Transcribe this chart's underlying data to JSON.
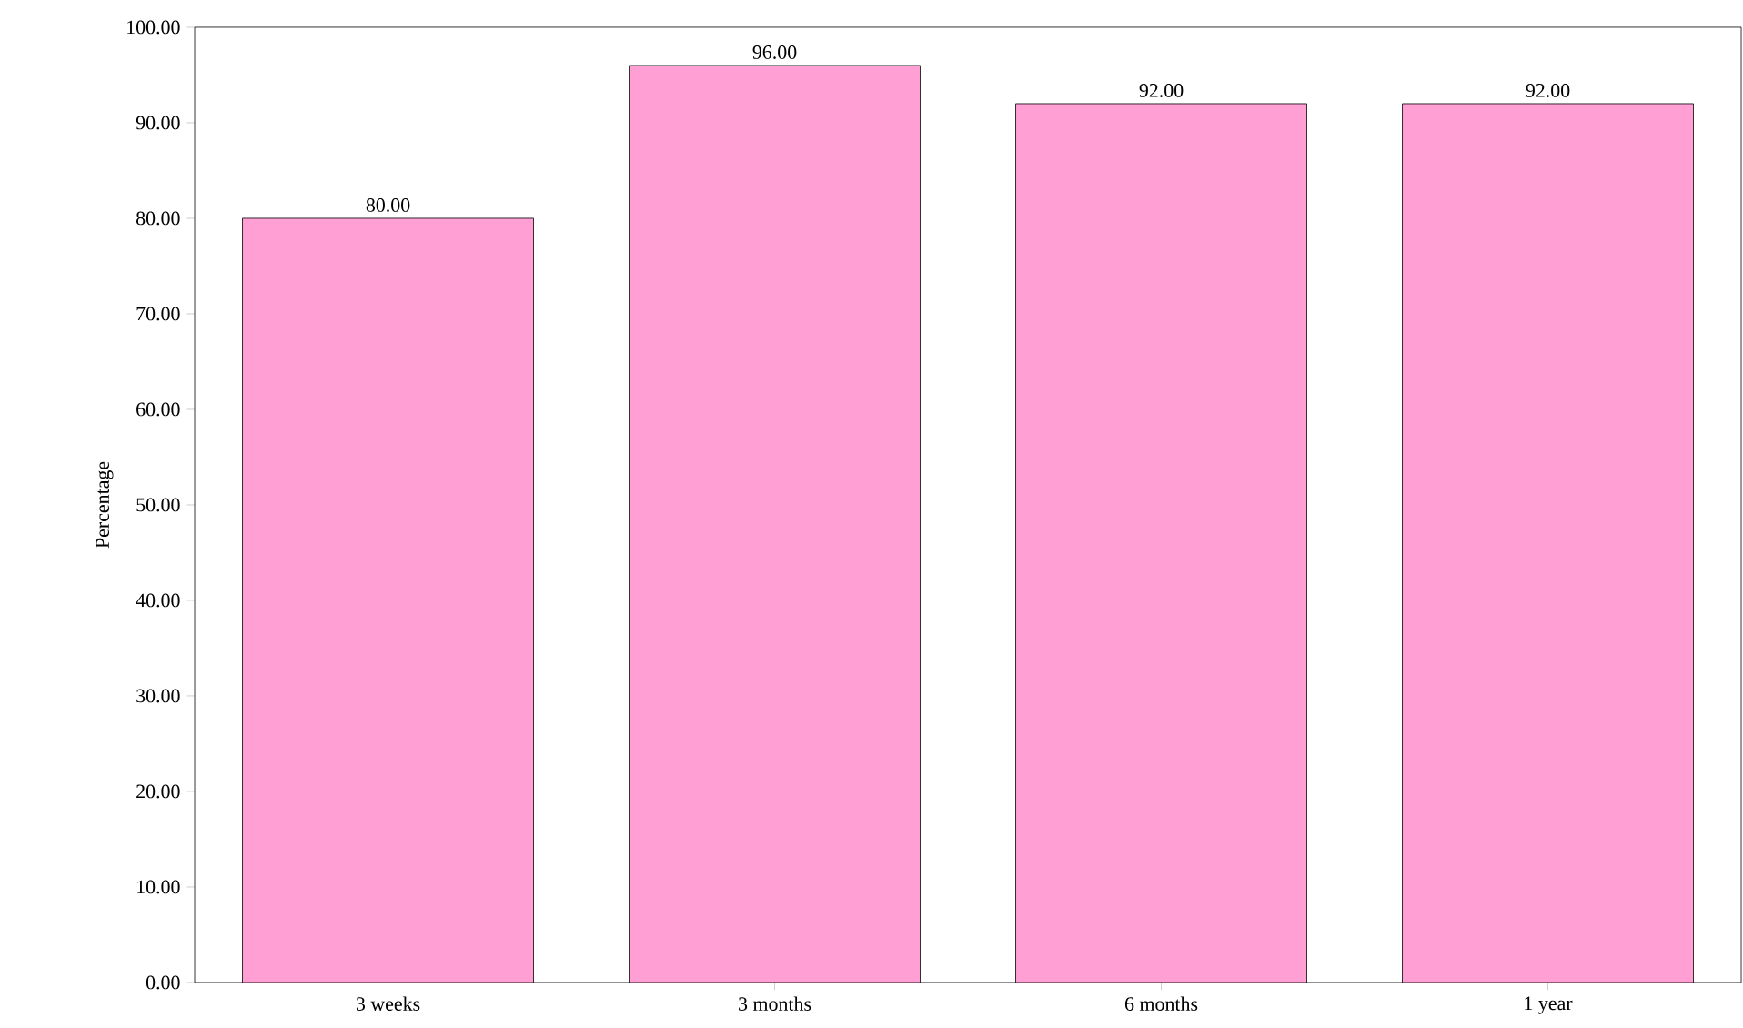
{
  "chart_data": {
    "type": "bar",
    "ylabel": "Percentage",
    "categories": [
      "3 weeks",
      "3 months",
      "6 months",
      "1 year"
    ],
    "values": [
      80,
      96,
      92,
      92
    ],
    "value_labels": [
      "80.00",
      "96.00",
      "92.00",
      "92.00"
    ],
    "color": "#ff9fd4",
    "ylim": [
      0,
      100
    ],
    "yticks": [
      {
        "value": 0,
        "label": "0.00"
      },
      {
        "value": 10,
        "label": "10.00"
      },
      {
        "value": 20,
        "label": "20.00"
      },
      {
        "value": 30,
        "label": "30.00"
      },
      {
        "value": 40,
        "label": "40.00"
      },
      {
        "value": 50,
        "label": "50.00"
      },
      {
        "value": 60,
        "label": "60.00"
      },
      {
        "value": 70,
        "label": "70.00"
      },
      {
        "value": 80,
        "label": "80.00"
      },
      {
        "value": 90,
        "label": "90.00"
      },
      {
        "value": 100,
        "label": "100.00"
      }
    ],
    "grid": false
  }
}
